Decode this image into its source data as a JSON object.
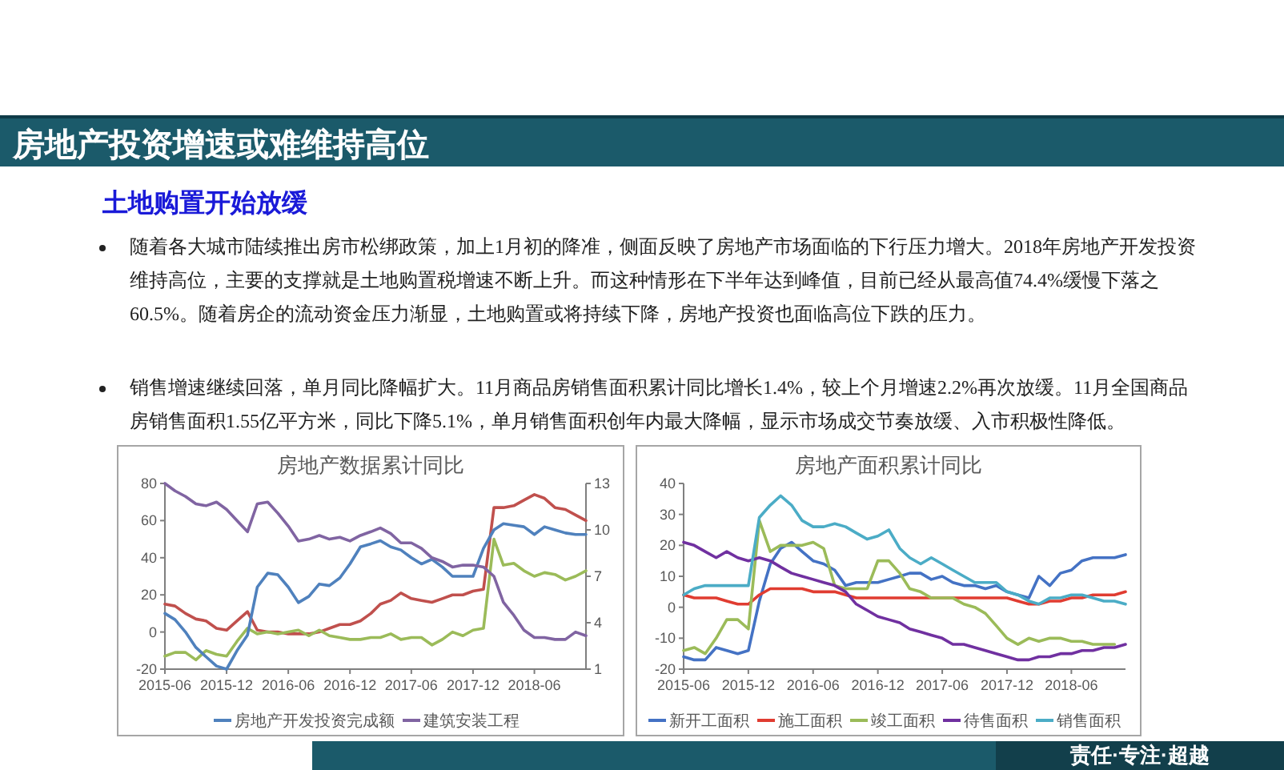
{
  "chart_data": [
    {
      "type": "other",
      "title": "房地产投资增速或难维持高位",
      "annotations": [
        "土地购置开始放缓",
        "随着各大城市陆续推出房市松绑政策，加上1月初的降准，侧面反映了房地产市场面临的下行压力增大。2018年房地产开发投资维持高位，主要的支撑就是土地购置税增速不断上升。而这种情形在下半年达到峰值，目前已经从最高值74.4%缓慢下落之60.5%。随着房企的流动资金压力渐显，土地购置或将持续下降，房地产投资也面临高位下跌的压力。",
        "销售增速继续回落，单月同比降幅扩大。11月商品房销售面积累计同比增长1.4%，较上个月增速2.2%再次放缓。11月全国商品房销售面积1.55亿平方米，同比下降5.1%，单月销售面积创年内最大降幅，显示市场成交节奏放缓、入市积极性降低。",
        "责任·专注·超越"
      ]
    },
    {
      "type": "line",
      "title": "房地产数据累计同比",
      "legend": "bottom",
      "x": [
        "2015-06",
        "2015-07",
        "2015-08",
        "2015-09",
        "2015-10",
        "2015-11",
        "2015-12",
        "2016-01",
        "2016-02",
        "2016-03",
        "2016-04",
        "2016-05",
        "2016-06",
        "2016-07",
        "2016-08",
        "2016-09",
        "2016-10",
        "2016-11",
        "2016-12",
        "2017-01",
        "2017-02",
        "2017-03",
        "2017-04",
        "2017-05",
        "2017-06",
        "2017-07",
        "2017-08",
        "2017-09",
        "2017-10",
        "2017-11",
        "2017-12",
        "2018-01",
        "2018-02",
        "2018-03",
        "2018-04",
        "2018-05",
        "2018-06",
        "2018-07",
        "2018-08",
        "2018-09",
        "2018-10",
        "2018-11"
      ],
      "xlim": [
        "2015-06",
        "2018-11"
      ],
      "xticks": [
        "2015-06",
        "2015-12",
        "2016-06",
        "2016-12",
        "2017-06",
        "2017-12",
        "2018-06"
      ],
      "ylim": [
        -20,
        80
      ],
      "yticks": [
        -20,
        0,
        20,
        40,
        60,
        80
      ],
      "y2lim": [
        1,
        13
      ],
      "y2ticks": [
        1,
        4,
        7,
        10,
        13
      ],
      "series": [
        {
          "color": "#c0504d",
          "values": [
            15,
            14,
            10,
            7,
            6,
            2,
            1,
            6,
            11,
            1,
            0,
            0,
            -1,
            -1,
            -1,
            0,
            2,
            4,
            4,
            6,
            10,
            15,
            17,
            21,
            18,
            17,
            16,
            18,
            20,
            20,
            22,
            23,
            67,
            67,
            68,
            71,
            74,
            72,
            67,
            66,
            63,
            60
          ]
        },
        {
          "color": "#9bbb59",
          "values": [
            -13,
            -11,
            -11,
            -15,
            -10,
            -12,
            -13,
            -5,
            2,
            -1,
            0,
            -1,
            0,
            1,
            -2,
            1,
            -2,
            -3,
            -4,
            -4,
            -3,
            -3,
            -1,
            -4,
            -3,
            -3,
            -7,
            -4,
            0,
            -2,
            1,
            2,
            50,
            36,
            37,
            33,
            30,
            32,
            31,
            28,
            30,
            33
          ]
        },
        {
          "name": "房地产开发投资完成额",
          "color": "#4f81bd",
          "axis": "y2",
          "values": [
            4.6,
            4.2,
            3.4,
            2.4,
            1.8,
            1.2,
            1.0,
            2.2,
            3.2,
            6.3,
            7.2,
            7.1,
            6.3,
            5.3,
            5.7,
            6.5,
            6.4,
            6.9,
            7.8,
            8.9,
            9.1,
            9.3,
            8.9,
            8.7,
            8.2,
            7.8,
            8.1,
            7.6,
            7.0,
            7.0,
            7.0,
            8.8,
            10.0,
            10.4,
            10.3,
            10.2,
            9.7,
            10.2,
            10.0,
            9.8,
            9.7,
            9.7
          ]
        },
        {
          "name": "建筑安装工程",
          "color": "#8064a2",
          "values": [
            80,
            76,
            73,
            69,
            68,
            70,
            66,
            60,
            54,
            69,
            70,
            64,
            57,
            49,
            50,
            52,
            50,
            51,
            49,
            52,
            54,
            56,
            53,
            48,
            48,
            45,
            40,
            38,
            35,
            36,
            36,
            35,
            30,
            16,
            9,
            1,
            -3,
            -3,
            -4,
            -4,
            0,
            -2
          ]
        }
      ]
    },
    {
      "type": "line",
      "title": "房地产面积累计同比",
      "legend": "bottom",
      "x": [
        "2015-06",
        "2015-07",
        "2015-08",
        "2015-09",
        "2015-10",
        "2015-11",
        "2015-12",
        "2016-01",
        "2016-02",
        "2016-03",
        "2016-04",
        "2016-05",
        "2016-06",
        "2016-07",
        "2016-08",
        "2016-09",
        "2016-10",
        "2016-11",
        "2016-12",
        "2017-01",
        "2017-02",
        "2017-03",
        "2017-04",
        "2017-05",
        "2017-06",
        "2017-07",
        "2017-08",
        "2017-09",
        "2017-10",
        "2017-11",
        "2017-12",
        "2018-01",
        "2018-02",
        "2018-03",
        "2018-04",
        "2018-05",
        "2018-06",
        "2018-07",
        "2018-08",
        "2018-09",
        "2018-10",
        "2018-11"
      ],
      "xlim": [
        "2015-06",
        "2018-11"
      ],
      "xticks": [
        "2015-06",
        "2015-12",
        "2016-06",
        "2016-12",
        "2017-06",
        "2017-12",
        "2018-06"
      ],
      "ylim": [
        -20,
        40
      ],
      "yticks": [
        -20,
        -10,
        0,
        10,
        20,
        30,
        40
      ],
      "series": [
        {
          "name": "新开工面积",
          "color": "#4472c4",
          "values": [
            -16,
            -17,
            -17,
            -13,
            -14,
            -15,
            -14,
            2,
            14,
            19,
            21,
            18,
            15,
            14,
            12,
            7,
            8,
            8,
            8,
            9,
            10,
            11,
            11,
            9,
            10,
            8,
            7,
            7,
            6,
            7,
            5,
            4,
            3,
            10,
            7,
            11,
            12,
            15,
            16,
            16,
            16,
            17
          ]
        },
        {
          "name": "施工面积",
          "color": "#e03c31",
          "values": [
            4,
            3,
            3,
            3,
            2,
            1,
            1,
            4,
            6,
            6,
            6,
            6,
            5,
            5,
            5,
            4,
            3,
            3,
            3,
            3,
            3,
            3,
            3,
            3,
            3,
            3,
            3,
            3,
            3,
            3,
            3,
            2,
            1,
            1,
            2,
            2,
            3,
            3,
            4,
            4,
            4,
            5
          ]
        },
        {
          "name": "竣工面积",
          "color": "#9bbb59",
          "values": [
            -14,
            -13,
            -15,
            -10,
            -4,
            -4,
            -7,
            28,
            18,
            20,
            20,
            20,
            21,
            19,
            7,
            6,
            6,
            6,
            15,
            15,
            11,
            6,
            5,
            3,
            3,
            3,
            1,
            0,
            -2,
            -6,
            -10,
            -12,
            -10,
            -11,
            -10,
            -10,
            -11,
            -11,
            -12,
            -12,
            -12,
            null
          ]
        },
        {
          "name": "待售面积",
          "color": "#7030a0",
          "values": [
            21,
            20,
            18,
            16,
            18,
            16,
            15,
            16,
            15,
            13,
            11,
            10,
            9,
            8,
            7,
            5,
            1,
            -1,
            -3,
            -4,
            -5,
            -7,
            -8,
            -9,
            -10,
            -12,
            -12,
            -13,
            -14,
            -15,
            -16,
            -17,
            -17,
            -16,
            -16,
            -15,
            -15,
            -14,
            -14,
            -13,
            -13,
            -12
          ]
        },
        {
          "name": "销售面积",
          "color": "#4bacc6",
          "values": [
            4,
            6,
            7,
            7,
            7,
            7,
            7,
            29,
            33,
            36,
            33,
            28,
            26,
            26,
            27,
            26,
            24,
            22,
            23,
            25,
            19,
            16,
            14,
            16,
            14,
            12,
            10,
            8,
            8,
            8,
            5,
            4,
            2,
            1,
            3,
            3,
            4,
            4,
            3,
            2,
            2,
            1
          ]
        }
      ]
    }
  ]
}
